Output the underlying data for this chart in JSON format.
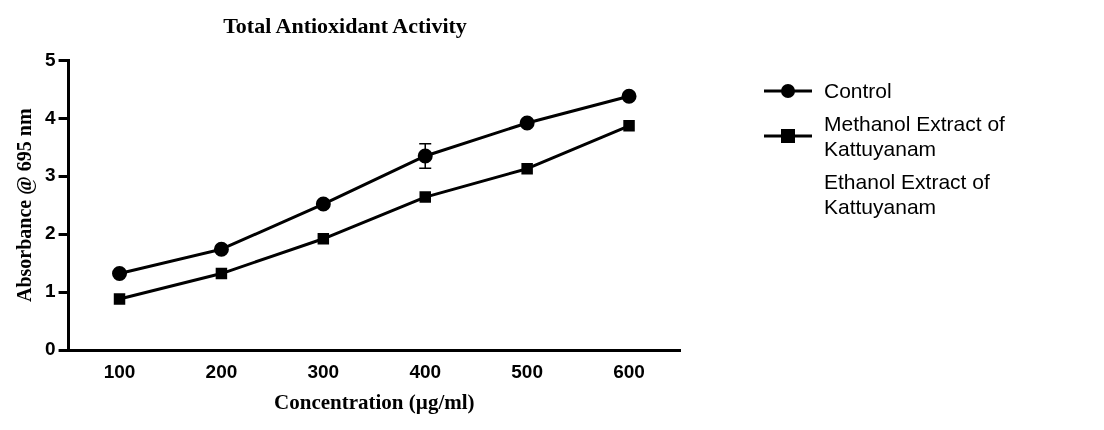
{
  "chart_data": {
    "type": "line",
    "title": "Total Antioxidant Activity",
    "xlabel": "Concentration (µg/ml)",
    "ylabel": "Absorbance @ 695 nm",
    "categories": [
      "100",
      "200",
      "300",
      "400",
      "500",
      "600"
    ],
    "series": [
      {
        "name": "Control",
        "color": "#000000",
        "marker": "circle",
        "values": [
          1.32,
          1.74,
          2.52,
          3.35,
          3.92,
          4.38
        ],
        "errors": [
          null,
          null,
          null,
          0.21,
          null,
          null
        ]
      },
      {
        "name": "Methanol Extract of Kattuyanam",
        "color": "#000000",
        "marker": "square",
        "values": [
          0.88,
          1.32,
          1.92,
          2.64,
          3.13,
          3.87
        ]
      },
      {
        "name": "Ethanol Extract of Kattuyanam",
        "marker": "none",
        "values": [
          null,
          null,
          null,
          null,
          null,
          null
        ]
      }
    ],
    "ylim": [
      0,
      5
    ],
    "yticks": [
      0,
      1,
      2,
      3,
      4,
      5
    ],
    "grid": false,
    "legend": "right",
    "line_style": "solid"
  }
}
